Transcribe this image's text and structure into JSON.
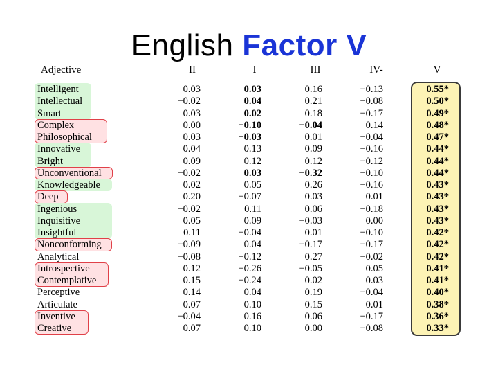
{
  "title": {
    "part1": "English",
    "part2": "Factor V"
  },
  "colors": {
    "title_accent": "#1a34d6",
    "green_highlight": "#d8f6d8",
    "red_highlight": "#ffe1e3",
    "red_border": "#e04048",
    "yellow_highlight": "#fdf3b5"
  },
  "table": {
    "headers": [
      "Adjective",
      "II",
      "I",
      "III",
      "IV-",
      "V"
    ],
    "rows": [
      {
        "adj": "Intelligent",
        "ii": "0.03",
        "i": "0.03",
        "iii": "0.16",
        "iv": "−0.13",
        "v": "0.55*",
        "hl": "green",
        "bold": [
          "i"
        ]
      },
      {
        "adj": "Intellectual",
        "ii": "−0.02",
        "i": "0.04",
        "iii": "0.21",
        "iv": "−0.08",
        "v": "0.50*",
        "hl": "green",
        "bold": [
          "i"
        ]
      },
      {
        "adj": "Smart",
        "ii": "0.03",
        "i": "0.02",
        "iii": "0.18",
        "iv": "−0.17",
        "v": "0.49*",
        "hl": "green",
        "bold": [
          "i"
        ]
      },
      {
        "adj": "Complex",
        "ii": "0.00",
        "i": "−0.10",
        "iii": "−0.04",
        "iv": "0.14",
        "v": "0.48*",
        "hl": "red",
        "bold": [
          "i",
          "iii"
        ]
      },
      {
        "adj": "Philosophical",
        "ii": "0.03",
        "i": "−0.03",
        "iii": "0.01",
        "iv": "−0.04",
        "v": "0.47*",
        "hl": "red",
        "bold": [
          "i"
        ]
      },
      {
        "adj": "Innovative",
        "ii": "0.04",
        "i": "0.13",
        "iii": "0.09",
        "iv": "−0.16",
        "v": "0.44*",
        "hl": "green",
        "bold": []
      },
      {
        "adj": "Bright",
        "ii": "0.09",
        "i": "0.12",
        "iii": "0.12",
        "iv": "−0.12",
        "v": "0.44*",
        "hl": "green",
        "bold": []
      },
      {
        "adj": "Unconventional",
        "ii": "−0.02",
        "i": "0.03",
        "iii": "−0.32",
        "iv": "−0.10",
        "v": "0.44*",
        "hl": "red",
        "bold": [
          "i",
          "iii"
        ]
      },
      {
        "adj": "Knowledgeable",
        "ii": "0.02",
        "i": "0.05",
        "iii": "0.26",
        "iv": "−0.16",
        "v": "0.43*",
        "hl": "green",
        "bold": []
      },
      {
        "adj": "Deep",
        "ii": "0.20",
        "i": "−0.07",
        "iii": "0.03",
        "iv": "0.01",
        "v": "0.43*",
        "hl": "red",
        "bold": []
      },
      {
        "adj": "Ingenious",
        "ii": "−0.02",
        "i": "0.11",
        "iii": "0.06",
        "iv": "−0.18",
        "v": "0.43*",
        "hl": "green",
        "bold": []
      },
      {
        "adj": "Inquisitive",
        "ii": "0.05",
        "i": "0.09",
        "iii": "−0.03",
        "iv": "0.00",
        "v": "0.43*",
        "hl": "green",
        "bold": []
      },
      {
        "adj": "Insightful",
        "ii": "0.11",
        "i": "−0.04",
        "iii": "0.01",
        "iv": "−0.10",
        "v": "0.42*",
        "hl": "green",
        "bold": []
      },
      {
        "adj": "Nonconforming",
        "ii": "−0.09",
        "i": "0.04",
        "iii": "−0.17",
        "iv": "−0.17",
        "v": "0.42*",
        "hl": "red",
        "bold": []
      },
      {
        "adj": "Analytical",
        "ii": "−0.08",
        "i": "−0.12",
        "iii": "0.27",
        "iv": "−0.02",
        "v": "0.42*",
        "hl": "none",
        "bold": []
      },
      {
        "adj": "Introspective",
        "ii": "0.12",
        "i": "−0.26",
        "iii": "−0.05",
        "iv": "0.05",
        "v": "0.41*",
        "hl": "red",
        "bold": []
      },
      {
        "adj": "Contemplative",
        "ii": "0.15",
        "i": "−0.24",
        "iii": "0.02",
        "iv": "0.03",
        "v": "0.41*",
        "hl": "red",
        "bold": []
      },
      {
        "adj": "Perceptive",
        "ii": "0.14",
        "i": "0.04",
        "iii": "0.19",
        "iv": "−0.04",
        "v": "0.40*",
        "hl": "none",
        "bold": []
      },
      {
        "adj": "Articulate",
        "ii": "0.07",
        "i": "0.10",
        "iii": "0.15",
        "iv": "0.01",
        "v": "0.38*",
        "hl": "none",
        "bold": []
      },
      {
        "adj": "Inventive",
        "ii": "−0.04",
        "i": "0.16",
        "iii": "0.06",
        "iv": "−0.17",
        "v": "0.36*",
        "hl": "red",
        "bold": []
      },
      {
        "adj": "Creative",
        "ii": "0.07",
        "i": "0.10",
        "iii": "0.00",
        "iv": "−0.08",
        "v": "0.33*",
        "hl": "red",
        "bold": []
      }
    ]
  }
}
